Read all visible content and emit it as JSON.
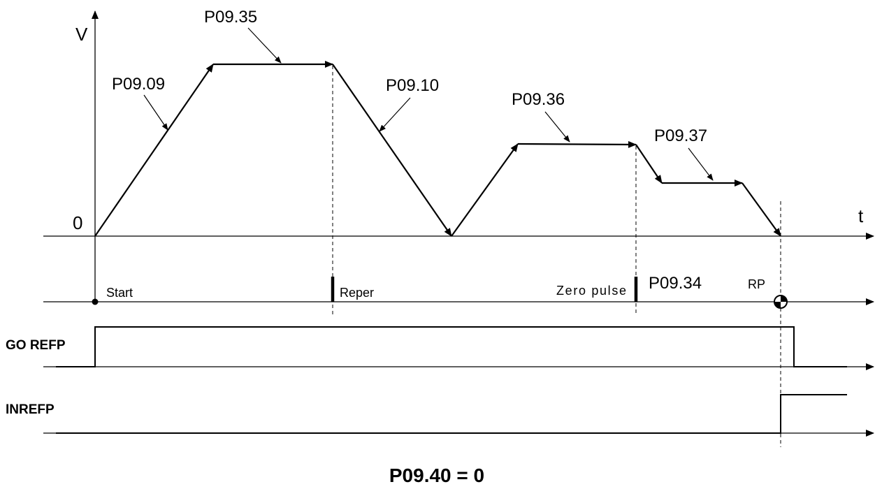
{
  "axes": {
    "y_label": "V",
    "x_label": "t",
    "origin_label": "0"
  },
  "parameters": {
    "accel": "P09.09",
    "speed_high": "P09.35",
    "decel": "P09.10",
    "speed_mid": "P09.36",
    "speed_low": "P09.37",
    "offset": "P09.34"
  },
  "events": {
    "start": "Start",
    "reper": "Reper",
    "zero_pulse": "Zero pulse",
    "rp": "RP"
  },
  "signals": {
    "go_refp": "GO REFP",
    "inrefp": "INREFP"
  },
  "footer": "P09.40 = 0"
}
